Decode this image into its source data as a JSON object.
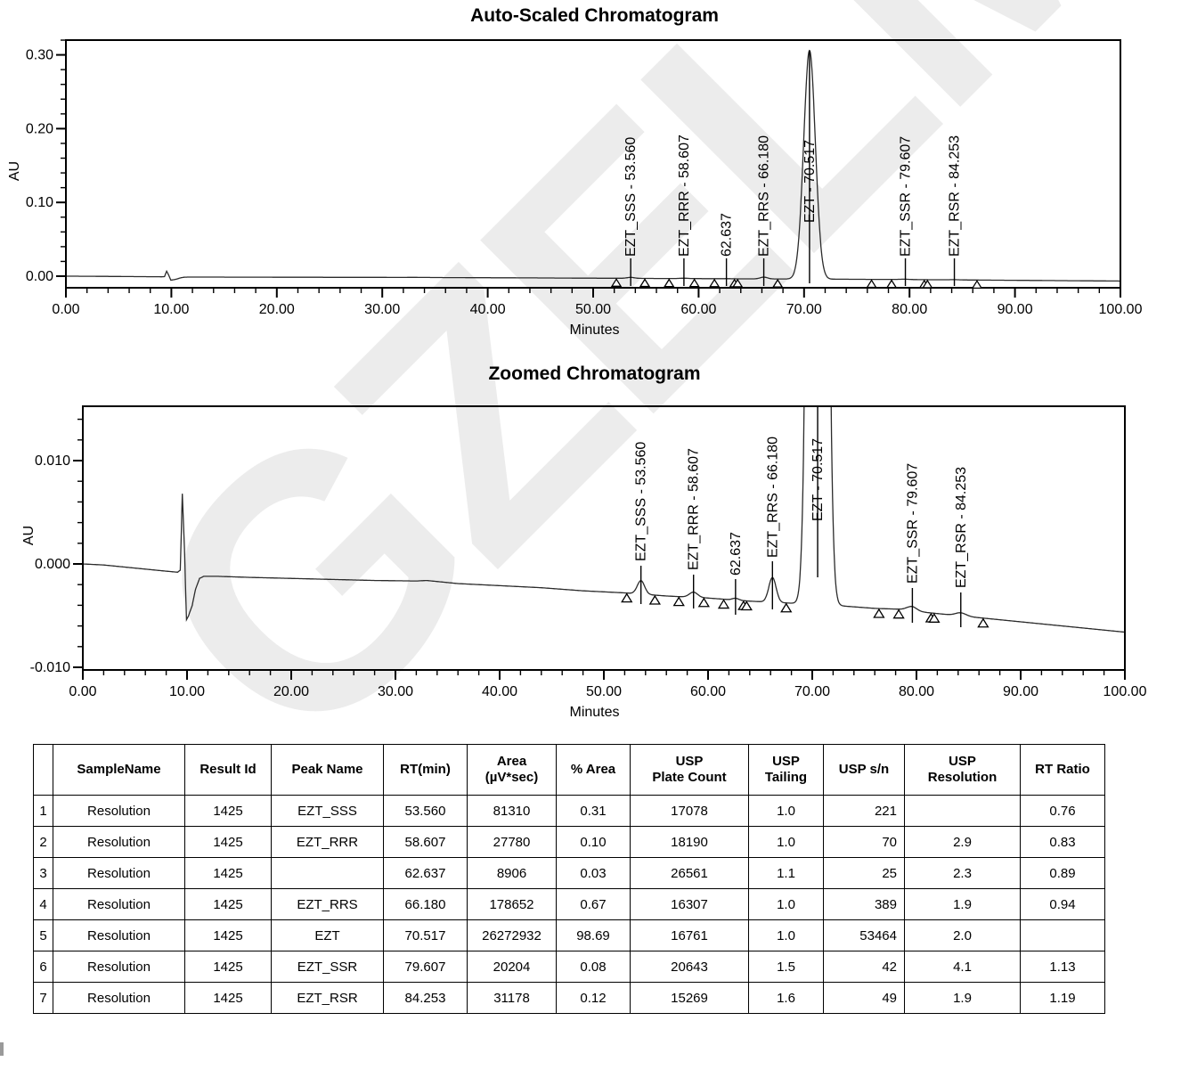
{
  "watermark": {
    "text": "GZELM"
  },
  "colors": {
    "ink": "#000000",
    "curve": "#2b2b2b",
    "marker": "#111111"
  },
  "signal": {
    "peaks": [
      {
        "name": "EZT_SSS",
        "label": "EZT_SSS - 53.560",
        "rt": 53.56,
        "height_au": 0.0013,
        "sigma_min": 0.35
      },
      {
        "name": "EZT_RRR",
        "label": "EZT_RRR - 58.607",
        "rt": 58.607,
        "height_au": 0.0005,
        "sigma_min": 0.4
      },
      {
        "name": "",
        "label": "62.637",
        "rt": 62.637,
        "height_au": 0.00018,
        "sigma_min": 0.3
      },
      {
        "name": "EZT_RRS",
        "label": "EZT_RRS - 66.180",
        "rt": 66.18,
        "height_au": 0.0024,
        "sigma_min": 0.35
      },
      {
        "name": "EZT",
        "label": "EZT - 70.517",
        "rt": 70.517,
        "height_au": 0.31,
        "sigma_min": 0.55
      },
      {
        "name": "EZT_SSR",
        "label": "EZT_SSR - 79.607",
        "rt": 79.607,
        "height_au": 0.0004,
        "sigma_min": 0.45
      },
      {
        "name": "EZT_RSR",
        "label": "EZT_RSR - 84.253",
        "rt": 84.253,
        "height_au": 0.0003,
        "sigma_min": 0.5
      }
    ],
    "baseline_points": [
      [
        0,
        0.0
      ],
      [
        2,
        -0.0001
      ],
      [
        4,
        -0.0003
      ],
      [
        6,
        -0.0005
      ],
      [
        8,
        -0.0007
      ],
      [
        9.1,
        -0.0008
      ],
      [
        9.35,
        -0.0006
      ],
      [
        9.55,
        0.0068
      ],
      [
        9.75,
        0.0015
      ],
      [
        9.95,
        -0.0054
      ],
      [
        10.15,
        -0.005
      ],
      [
        10.5,
        -0.004
      ],
      [
        10.8,
        -0.0025
      ],
      [
        11.2,
        -0.0014
      ],
      [
        11.6,
        -0.0012
      ],
      [
        13,
        -0.0012
      ],
      [
        16,
        -0.0013
      ],
      [
        20,
        -0.0014
      ],
      [
        24,
        -0.0015
      ],
      [
        28,
        -0.0016
      ],
      [
        32,
        -0.00165
      ],
      [
        33,
        -0.0016
      ],
      [
        36,
        -0.0019
      ],
      [
        40,
        -0.0021
      ],
      [
        44,
        -0.0023
      ],
      [
        48,
        -0.0026
      ],
      [
        52,
        -0.0028
      ],
      [
        56,
        -0.0031
      ],
      [
        60,
        -0.0033
      ],
      [
        64,
        -0.0036
      ],
      [
        68,
        -0.0038
      ],
      [
        72,
        -0.004
      ],
      [
        76,
        -0.0043
      ],
      [
        79,
        -0.0044
      ],
      [
        80,
        -0.0046
      ],
      [
        83,
        -0.0049
      ],
      [
        86,
        -0.0052
      ],
      [
        90,
        -0.0056
      ],
      [
        94,
        -0.006
      ],
      [
        97,
        -0.0063
      ],
      [
        100,
        -0.0066
      ]
    ],
    "integration_markers_min": [
      52.2,
      54.9,
      57.2,
      59.6,
      61.5,
      63.4,
      63.7,
      67.5,
      76.4,
      78.3,
      81.4,
      81.7,
      86.4
    ]
  },
  "chart_data": [
    {
      "type": "line",
      "title": "Auto-Scaled Chromatogram",
      "xlabel": "Minutes",
      "ylabel": "AU",
      "xlim": [
        0,
        100
      ],
      "ylim": [
        -0.0157,
        0.32
      ],
      "x_major_tick_step": 10,
      "x_minor_tick_step": 2,
      "y_minor_tick_step": 0.02,
      "grid": false,
      "x_tick_labels": [
        "0.00",
        "10.00",
        "20.00",
        "30.00",
        "40.00",
        "50.00",
        "60.00",
        "70.00",
        "80.00",
        "90.00",
        "100.00"
      ],
      "y_ticks": [
        {
          "label": "0.30",
          "value": 0.3
        },
        {
          "label": "0.20",
          "value": 0.2
        },
        {
          "label": "0.10",
          "value": 0.1
        },
        {
          "label": "0.00",
          "value": 0.0
        }
      ],
      "annotations": [
        "EZT_SSS - 53.560",
        "EZT_RRR - 58.607",
        "62.637",
        "EZT_RRS - 66.180",
        "EZT - 70.517",
        "EZT_SSR - 79.607",
        "EZT_RSR - 84.253"
      ]
    },
    {
      "type": "line",
      "title": "Zoomed Chromatogram",
      "xlabel": "Minutes",
      "ylabel": "AU",
      "xlim": [
        0,
        100
      ],
      "ylim": [
        -0.0103,
        0.0153
      ],
      "x_major_tick_step": 10,
      "x_minor_tick_step": 2,
      "y_minor_tick_step": 0.002,
      "grid": false,
      "x_tick_labels": [
        "0.00",
        "10.00",
        "20.00",
        "30.00",
        "40.00",
        "50.00",
        "60.00",
        "70.00",
        "80.00",
        "90.00",
        "100.00"
      ],
      "y_ticks": [
        {
          "label": "0.010",
          "value": 0.01
        },
        {
          "label": "0.000",
          "value": 0.0
        },
        {
          "label": "-0.010",
          "value": -0.01
        }
      ],
      "annotations": [
        "EZT_SSS - 53.560",
        "EZT_RRR - 58.607",
        "62.637",
        "EZT_RRS - 66.180",
        "EZT - 70.517",
        "EZT_SSR - 79.607",
        "EZT_RSR - 84.253"
      ]
    }
  ],
  "table": {
    "headers": [
      "",
      "SampleName",
      "Result Id",
      "Peak Name",
      "RT(min)",
      "Area\n(µV*sec)",
      "% Area",
      "USP\nPlate Count",
      "USP\nTailing",
      "USP s/n",
      "USP\nResolution",
      "RT Ratio"
    ],
    "rows": [
      [
        "1",
        "Resolution",
        "1425",
        "EZT_SSS",
        "53.560",
        "81310",
        "0.31",
        "17078",
        "1.0",
        "221",
        "",
        "0.76"
      ],
      [
        "2",
        "Resolution",
        "1425",
        "EZT_RRR",
        "58.607",
        "27780",
        "0.10",
        "18190",
        "1.0",
        "70",
        "2.9",
        "0.83"
      ],
      [
        "3",
        "Resolution",
        "1425",
        "",
        "62.637",
        "8906",
        "0.03",
        "26561",
        "1.1",
        "25",
        "2.3",
        "0.89"
      ],
      [
        "4",
        "Resolution",
        "1425",
        "EZT_RRS",
        "66.180",
        "178652",
        "0.67",
        "16307",
        "1.0",
        "389",
        "1.9",
        "0.94"
      ],
      [
        "5",
        "Resolution",
        "1425",
        "EZT",
        "70.517",
        "26272932",
        "98.69",
        "16761",
        "1.0",
        "53464",
        "2.0",
        ""
      ],
      [
        "6",
        "Resolution",
        "1425",
        "EZT_SSR",
        "79.607",
        "20204",
        "0.08",
        "20643",
        "1.5",
        "42",
        "4.1",
        "1.13"
      ],
      [
        "7",
        "Resolution",
        "1425",
        "EZT_RSR",
        "84.253",
        "31178",
        "0.12",
        "15269",
        "1.6",
        "49",
        "1.9",
        "1.19"
      ]
    ]
  }
}
